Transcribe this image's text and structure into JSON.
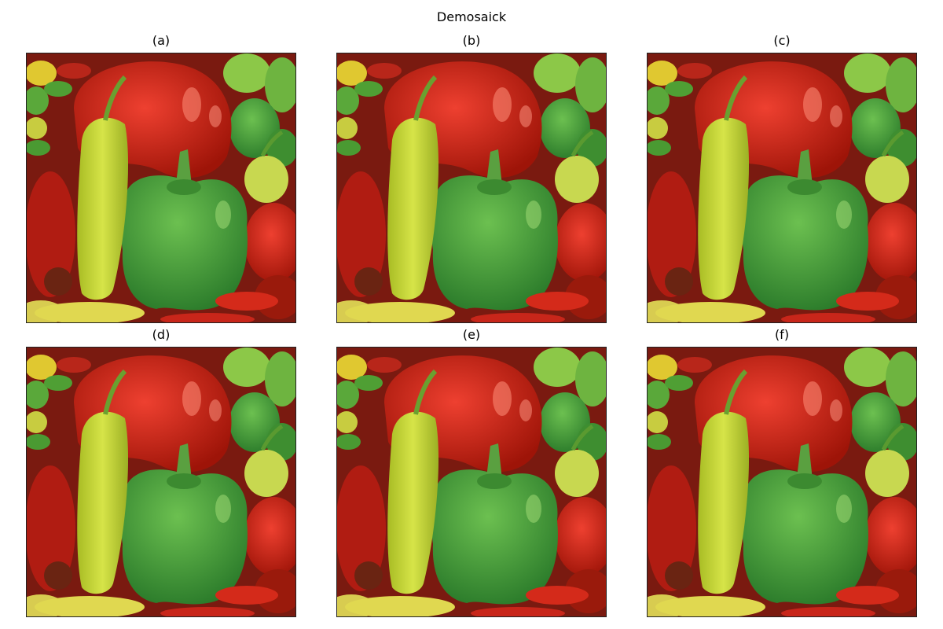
{
  "figure": {
    "title": "Demosaick",
    "panels": [
      {
        "label": "(a)"
      },
      {
        "label": "(b)"
      },
      {
        "label": "(c)"
      },
      {
        "label": "(d)"
      },
      {
        "label": "(e)"
      },
      {
        "label": "(f)"
      }
    ]
  },
  "colors": {
    "red_pepper": "#d42a1a",
    "green_pepper": "#3aa03a",
    "yellow_pepper": "#c8d838",
    "background": "#7a1a10"
  }
}
